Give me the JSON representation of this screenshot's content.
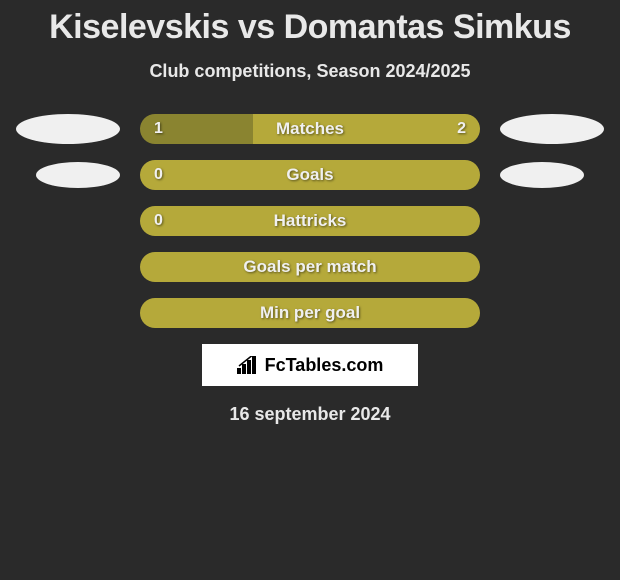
{
  "title": "Kiselevskis vs Domantas Simkus",
  "subtitle": "Club competitions, Season 2024/2025",
  "date": "16 september 2024",
  "logo_text": "FcTables.com",
  "colors": {
    "left_fill": "#8a8430",
    "right_fill": "#b5a93a",
    "full_fill": "#b5a93a",
    "ellipse": "#f0f0f0",
    "text": "#f0f0f0",
    "background": "#2a2a2a"
  },
  "rows": [
    {
      "label": "Matches",
      "left_value": "1",
      "right_value": "2",
      "left_pct": 33.3,
      "right_pct": 66.7,
      "left_color": "#8a8430",
      "right_color": "#b5a93a",
      "show_left_ellipse": true,
      "show_right_ellipse": true,
      "ellipse_size": "large"
    },
    {
      "label": "Goals",
      "left_value": "0",
      "right_value": "",
      "left_pct": 100,
      "right_pct": 0,
      "left_color": "#b5a93a",
      "right_color": "#b5a93a",
      "show_left_ellipse": true,
      "show_right_ellipse": true,
      "ellipse_size": "small"
    },
    {
      "label": "Hattricks",
      "left_value": "0",
      "right_value": "",
      "left_pct": 100,
      "right_pct": 0,
      "left_color": "#b5a93a",
      "right_color": "#b5a93a",
      "show_left_ellipse": false,
      "show_right_ellipse": false,
      "ellipse_size": "small"
    },
    {
      "label": "Goals per match",
      "left_value": "",
      "right_value": "",
      "left_pct": 100,
      "right_pct": 0,
      "left_color": "#b5a93a",
      "right_color": "#b5a93a",
      "show_left_ellipse": false,
      "show_right_ellipse": false,
      "ellipse_size": "small"
    },
    {
      "label": "Min per goal",
      "left_value": "",
      "right_value": "",
      "left_pct": 100,
      "right_pct": 0,
      "left_color": "#b5a93a",
      "right_color": "#b5a93a",
      "show_left_ellipse": false,
      "show_right_ellipse": false,
      "ellipse_size": "small"
    }
  ]
}
